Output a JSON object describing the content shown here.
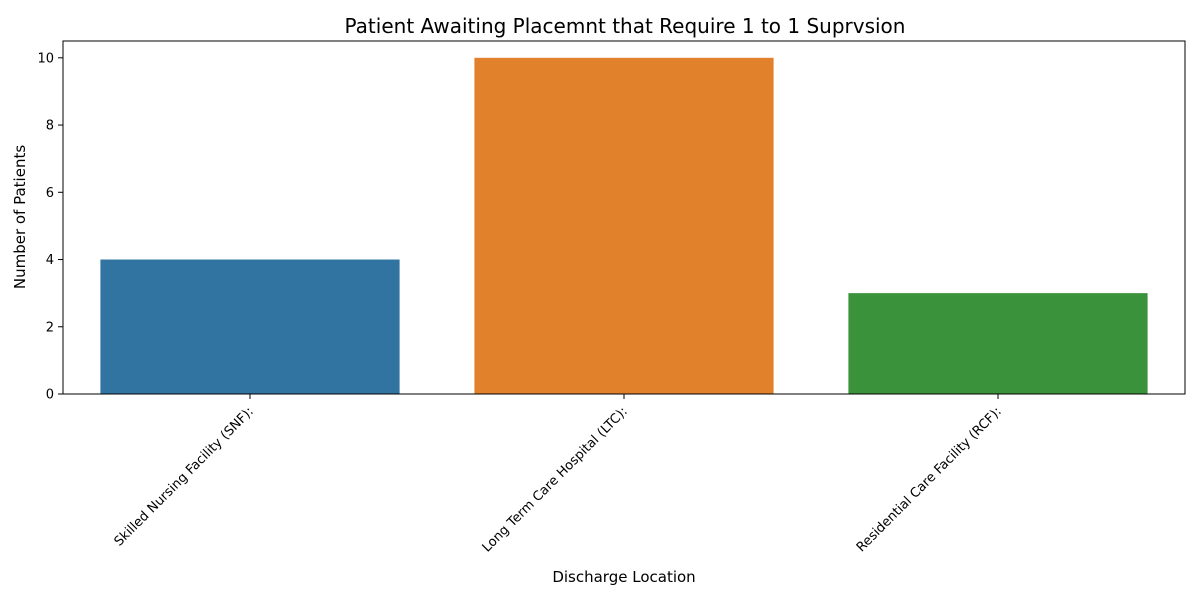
{
  "chart_data": {
    "type": "bar",
    "title": "Patient Awaiting Placemnt that Require 1 to 1 Suprvsion",
    "xlabel": "Discharge Location",
    "ylabel": "Number of Patients",
    "categories": [
      "Skilled Nursing Facility (SNF):",
      "Long Term Care Hospital (LTC):",
      "Residential Care Facility (RCF):"
    ],
    "values": [
      4,
      10,
      3
    ],
    "colors": [
      "#3274a1",
      "#e1812c",
      "#3a923a"
    ],
    "ylim": [
      0,
      10.5
    ],
    "yticks": [
      0,
      2,
      4,
      6,
      8,
      10
    ],
    "grid": false,
    "legend": "none"
  }
}
